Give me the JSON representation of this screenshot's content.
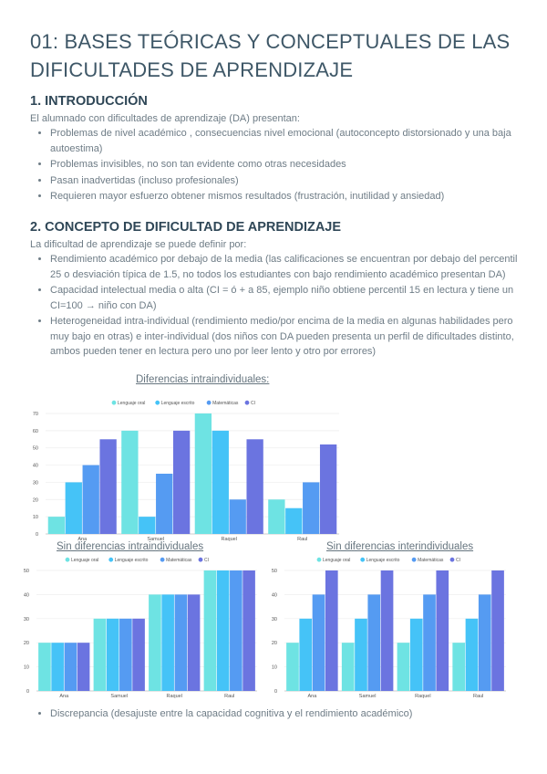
{
  "title": "01: BASES TEÓRICAS Y CONCEPTUALES DE LAS DIFICULTADES DE APRENDIZAJE",
  "section1": {
    "heading": "1. INTRODUCCIÓN",
    "intro": "El alumnado con dificultades de aprendizaje (DA) presentan:",
    "bullets": [
      "Problemas de nivel académico , consecuencias nivel emocional (autoconcepto distorsionado y una baja autoestima)",
      "Problemas invisibles, no son tan evidente como otras necesidades",
      "Pasan inadvertidas (incluso profesionales)",
      "Requieren mayor esfuerzo obtener mismos resultados (frustración, inutilidad y ansiedad)"
    ]
  },
  "section2": {
    "heading": "2. CONCEPTO DE DIFICULTAD DE APRENDIZAJE",
    "intro": "La dificultad de aprendizaje se puede definir por:",
    "bullets": [
      "Rendimiento académico por debajo de la media (las calificaciones se encuentran por debajo del percentil 25 o desviación típica de 1.5, no todos los estudiantes con bajo rendimiento académico presentan DA)",
      "Capacidad intelectual media o alta (CI = ó + a 85, ejemplo niño obtiene percentil 15 en lectura y tiene un CI=100 → niño con DA)",
      "Heterogeneidad intra-individual (rendimiento medio/por encima de la media en algunas habilidades pero muy bajo en otras) e inter-individual (dos niños con DA pueden presenta un perfil de dificultades distinto, ambos pueden tener en lectura pero uno por leer lento y otro por errores)"
    ],
    "final_bullet": "Discrepancia (desajuste entre la capacidad cognitiva y el rendimiento académico)"
  },
  "chart_data": [
    {
      "type": "bar",
      "title": "Diferencias intraindividuales:",
      "categories": [
        "Ana",
        "Samuel",
        "Raquel",
        "Raul"
      ],
      "series": [
        {
          "name": "Lenguaje oral",
          "color": "#6ee3e3",
          "values": [
            10,
            60,
            70,
            20
          ]
        },
        {
          "name": "Lenguaje escrito",
          "color": "#45c3f7",
          "values": [
            30,
            10,
            60,
            15
          ]
        },
        {
          "name": "Matemáticas",
          "color": "#559bf2",
          "values": [
            40,
            35,
            20,
            30
          ]
        },
        {
          "name": "CI",
          "color": "#6b74e0",
          "values": [
            55,
            60,
            55,
            52
          ]
        }
      ],
      "ylim": [
        0,
        70
      ],
      "yticks": [
        0,
        10,
        20,
        30,
        40,
        50,
        60,
        70
      ],
      "grid": true,
      "legend": "top"
    },
    {
      "type": "bar",
      "title": "Sin diferencias intraindividuales",
      "categories": [
        "Ana",
        "Samuel",
        "Raquel",
        "Raul"
      ],
      "series": [
        {
          "name": "Lenguaje oral",
          "color": "#6ee3e3",
          "values": [
            20,
            30,
            40,
            50
          ]
        },
        {
          "name": "Lenguaje escrito",
          "color": "#45c3f7",
          "values": [
            20,
            30,
            40,
            50
          ]
        },
        {
          "name": "Matemáticas",
          "color": "#559bf2",
          "values": [
            20,
            30,
            40,
            50
          ]
        },
        {
          "name": "CI",
          "color": "#6b74e0",
          "values": [
            20,
            30,
            40,
            50
          ]
        }
      ],
      "ylim": [
        0,
        50
      ],
      "yticks": [
        0,
        10,
        20,
        30,
        40,
        50
      ],
      "grid": true,
      "legend": "top"
    },
    {
      "type": "bar",
      "title": "Sin diferencias interindividuales",
      "categories": [
        "Ana",
        "Samuel",
        "Raquel",
        "Raul"
      ],
      "series": [
        {
          "name": "Lenguaje oral",
          "color": "#6ee3e3",
          "values": [
            20,
            20,
            20,
            20
          ]
        },
        {
          "name": "Lenguaje escrito",
          "color": "#45c3f7",
          "values": [
            30,
            30,
            30,
            30
          ]
        },
        {
          "name": "Matemáticas",
          "color": "#559bf2",
          "values": [
            40,
            40,
            40,
            40
          ]
        },
        {
          "name": "CI",
          "color": "#6b74e0",
          "values": [
            50,
            50,
            50,
            50
          ]
        }
      ],
      "ylim": [
        0,
        50
      ],
      "yticks": [
        0,
        10,
        20,
        30,
        40,
        50
      ],
      "grid": true,
      "legend": "top"
    }
  ]
}
